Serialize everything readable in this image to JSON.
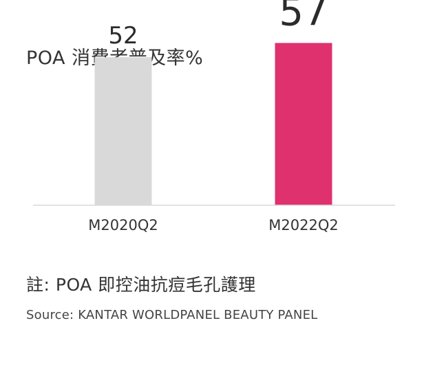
{
  "chart_data": {
    "type": "bar",
    "title": "POA 消費者普及率%",
    "categories": [
      "M2020Q2",
      "M2022Q2"
    ],
    "values": [
      52,
      57
    ],
    "colors": [
      "#d9d9d9",
      "#e0316f"
    ],
    "ylim": [
      0,
      60
    ],
    "grid": false,
    "legend": "none"
  },
  "footer": {
    "note": "註: POA 即控油抗痘毛孔護理",
    "source": "Source: KANTAR WORLDPANEL BEAUTY PANEL"
  }
}
